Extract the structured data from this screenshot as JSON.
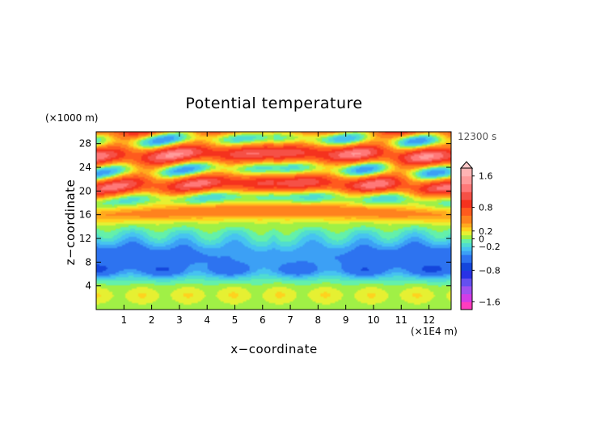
{
  "chart_data": {
    "type": "heatmap",
    "title": "Potential temperature",
    "xlabel": "x−coordinate",
    "ylabel": "z−coordinate",
    "x_unit": "(×1E4 m)",
    "y_unit": "(×1000 m)",
    "time_label": "12300 s",
    "xlim": [
      0,
      12.8
    ],
    "ylim": [
      0,
      30
    ],
    "x_ticks": [
      1,
      2,
      3,
      4,
      5,
      6,
      7,
      8,
      9,
      10,
      11,
      12
    ],
    "x_tick_labels": [
      "1",
      "2",
      "3",
      "4",
      "5",
      "6",
      "7",
      "8",
      "9",
      "10",
      "11",
      "12"
    ],
    "y_ticks": [
      4,
      8,
      12,
      16,
      20,
      24,
      28
    ],
    "y_tick_labels": [
      "4",
      "8",
      "12",
      "16",
      "20",
      "24",
      "28"
    ],
    "colorbar": {
      "range": [
        -1.8,
        1.8
      ],
      "tick_values": [
        1.6,
        0.8,
        0.2,
        0,
        -0.2,
        -0.8,
        -1.6
      ],
      "tick_labels": [
        "1.6",
        "0.8",
        "0.2",
        "0",
        "−0.2",
        "−0.8",
        "−1.6"
      ],
      "extend": "max",
      "levels": [
        {
          "lo": -1.8,
          "hi": -1.6,
          "color": "#ff3cbe"
        },
        {
          "lo": -1.6,
          "hi": -1.4,
          "color": "#d23ce6"
        },
        {
          "lo": -1.4,
          "hi": -1.2,
          "color": "#a050f0"
        },
        {
          "lo": -1.2,
          "hi": -1.0,
          "color": "#6450f0"
        },
        {
          "lo": -1.0,
          "hi": -0.8,
          "color": "#2832e6"
        },
        {
          "lo": -0.8,
          "hi": -0.6,
          "color": "#1446dc"
        },
        {
          "lo": -0.6,
          "hi": -0.4,
          "color": "#2d73f0"
        },
        {
          "lo": -0.4,
          "hi": -0.3,
          "color": "#3ca0f5"
        },
        {
          "lo": -0.3,
          "hi": -0.2,
          "color": "#46c3f0"
        },
        {
          "lo": -0.2,
          "hi": -0.1,
          "color": "#50dcd2"
        },
        {
          "lo": -0.1,
          "hi": 0.0,
          "color": "#64f0aa"
        },
        {
          "lo": 0.0,
          "hi": 0.1,
          "color": "#a0f046"
        },
        {
          "lo": 0.1,
          "hi": 0.2,
          "color": "#e6f032"
        },
        {
          "lo": 0.2,
          "hi": 0.3,
          "color": "#ffd21e"
        },
        {
          "lo": 0.3,
          "hi": 0.4,
          "color": "#ffaa1e"
        },
        {
          "lo": 0.4,
          "hi": 0.6,
          "color": "#ff821e"
        },
        {
          "lo": 0.6,
          "hi": 0.8,
          "color": "#ff5a1e"
        },
        {
          "lo": 0.8,
          "hi": 1.0,
          "color": "#f5321e"
        },
        {
          "lo": 1.0,
          "hi": 1.2,
          "color": "#f55046"
        },
        {
          "lo": 1.2,
          "hi": 1.4,
          "color": "#ff7878"
        },
        {
          "lo": 1.4,
          "hi": 1.6,
          "color": "#ff9b9b"
        },
        {
          "lo": 1.6,
          "hi": 1.8,
          "color": "#ffb4b4"
        }
      ]
    }
  }
}
